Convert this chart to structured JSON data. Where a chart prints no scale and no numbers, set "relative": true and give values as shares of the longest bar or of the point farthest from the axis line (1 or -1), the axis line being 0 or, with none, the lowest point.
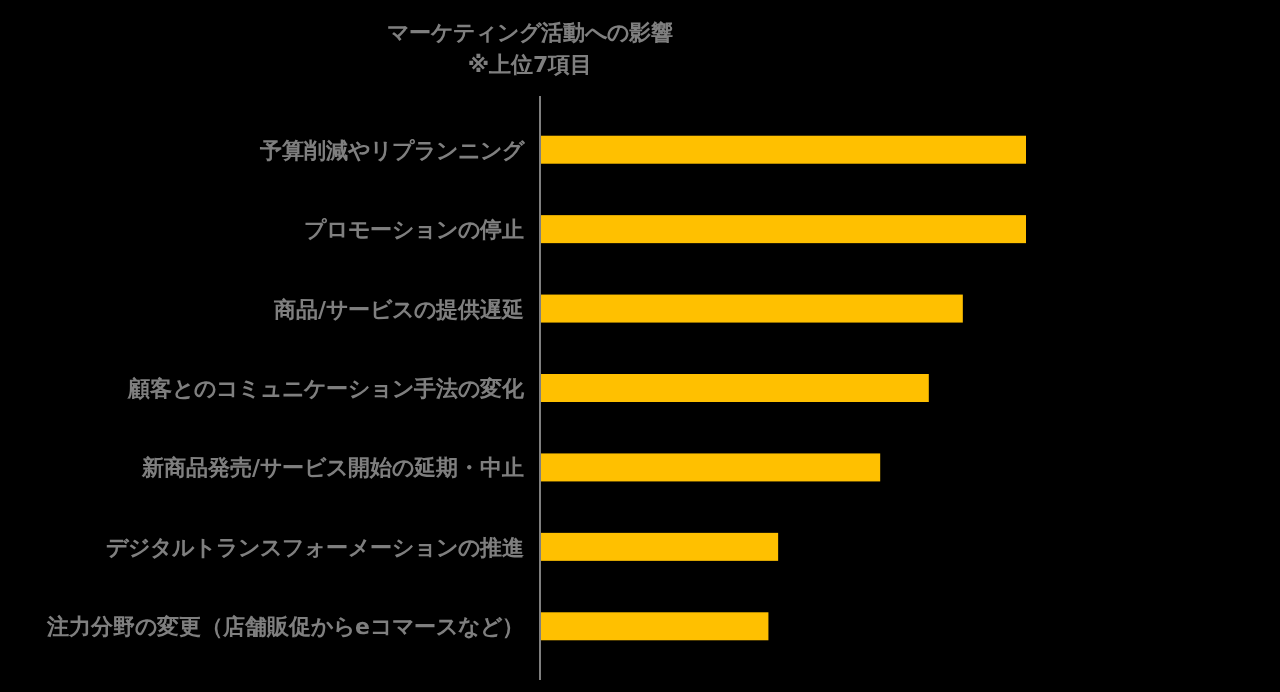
{
  "chart_data": {
    "type": "bar",
    "orientation": "horizontal",
    "relative": true,
    "title": "マーケティング活動への影響",
    "subtitle": "※上位7項目",
    "categories": [
      "予算削減やリプランニング",
      "プロモーションの停止",
      "商品/サービスの提供遅延",
      "顧客とのコミュニケーション手法の変化",
      "新商品発売/サービス開始の延期・中止",
      "デジタルトランスフォーメーションの推進",
      "注力分野の変更（店舗販促からeコマースなど）"
    ],
    "values": [
      1,
      1,
      0.87,
      0.8,
      0.7,
      0.49,
      0.47
    ],
    "color": "#ffc000"
  }
}
